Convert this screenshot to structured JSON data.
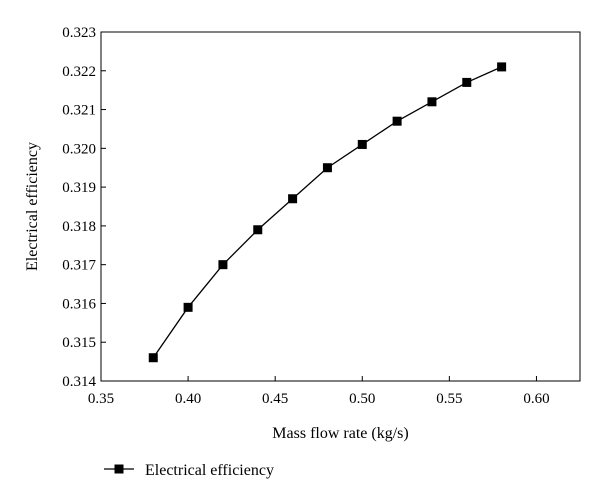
{
  "chart_data": {
    "type": "line",
    "title": "",
    "xlabel": "Mass flow rate (kg/s)",
    "ylabel": "Electrical efficiency",
    "xlim": [
      0.35,
      0.625
    ],
    "ylim": [
      0.314,
      0.323
    ],
    "xticks": [
      "0.35",
      "0.40",
      "0.45",
      "0.50",
      "0.55",
      "0.60"
    ],
    "yticks": [
      "0.314",
      "0.315",
      "0.316",
      "0.317",
      "0.318",
      "0.319",
      "0.320",
      "0.321",
      "0.322",
      "0.323"
    ],
    "grid": false,
    "legend_position": "bottom-left, below axes",
    "series": [
      {
        "name": "Electrical efficiency",
        "marker": "square",
        "color": "#000000",
        "x": [
          0.38,
          0.4,
          0.42,
          0.44,
          0.46,
          0.48,
          0.5,
          0.52,
          0.54,
          0.56,
          0.58
        ],
        "y": [
          0.3146,
          0.3159,
          0.317,
          0.3179,
          0.3187,
          0.3195,
          0.3201,
          0.3207,
          0.3212,
          0.3217,
          0.3221
        ]
      }
    ]
  }
}
